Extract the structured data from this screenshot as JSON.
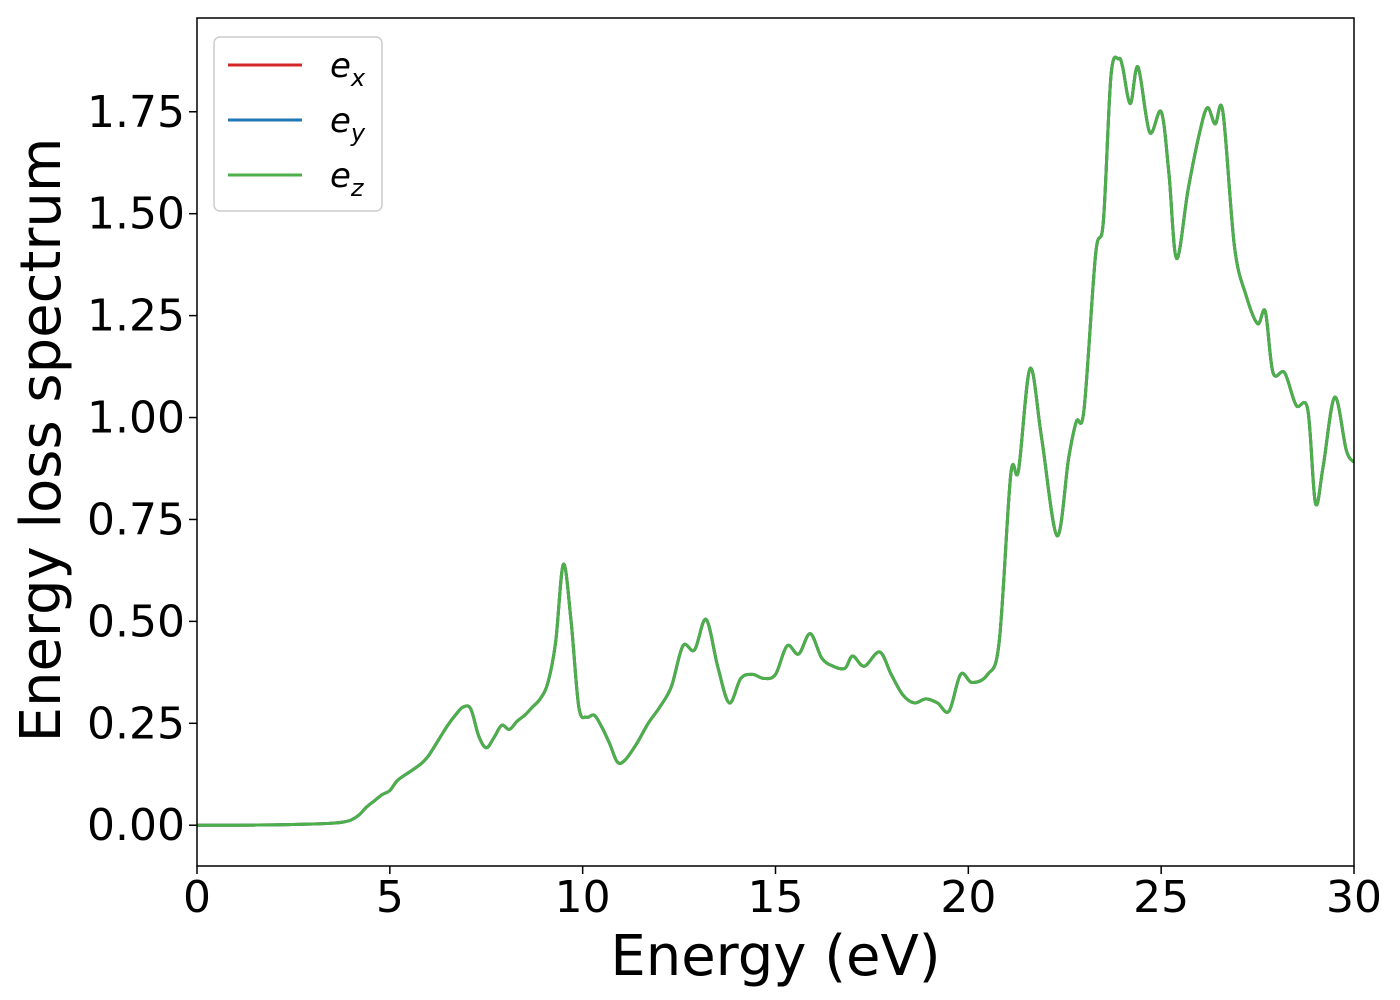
{
  "chart_data": {
    "type": "line",
    "title": "",
    "xlabel": "Energy (eV)",
    "ylabel": "Energy loss spectrum",
    "xlim": [
      0,
      30
    ],
    "ylim": [
      -0.1,
      1.98
    ],
    "xticks": [
      "0",
      "5",
      "10",
      "15",
      "20",
      "25",
      "30"
    ],
    "xtick_values": [
      0,
      5,
      10,
      15,
      20,
      25,
      30
    ],
    "yticks": [
      "0.00",
      "0.25",
      "0.50",
      "0.75",
      "1.00",
      "1.25",
      "1.50",
      "1.75"
    ],
    "ytick_values": [
      0,
      0.25,
      0.5,
      0.75,
      1.0,
      1.25,
      1.5,
      1.75
    ],
    "grid": false,
    "legend_position": "top-left",
    "x": [
      0,
      1,
      2,
      3,
      3.5,
      3.8,
      4.0,
      4.2,
      4.4,
      4.6,
      4.8,
      5.0,
      5.2,
      5.5,
      5.8,
      6.0,
      6.3,
      6.5,
      6.7,
      6.9,
      7.1,
      7.3,
      7.5,
      7.7,
      7.9,
      8.1,
      8.3,
      8.5,
      8.7,
      8.9,
      9.1,
      9.3,
      9.5,
      9.7,
      9.9,
      10.1,
      10.3,
      10.5,
      10.7,
      10.9,
      11.1,
      11.4,
      11.7,
      12.0,
      12.3,
      12.6,
      12.9,
      13.2,
      13.5,
      13.8,
      14.1,
      14.4,
      14.7,
      15.0,
      15.3,
      15.6,
      15.9,
      16.2,
      16.5,
      16.8,
      17.0,
      17.3,
      17.7,
      18.0,
      18.3,
      18.6,
      18.9,
      19.2,
      19.5,
      19.8,
      20.1,
      20.5,
      20.8,
      21.1,
      21.3,
      21.6,
      21.9,
      22.3,
      22.6,
      22.8,
      23.0,
      23.3,
      23.5,
      23.7,
      23.9,
      24.0,
      24.2,
      24.4,
      24.7,
      25.0,
      25.2,
      25.4,
      25.7,
      26.0,
      26.2,
      26.4,
      26.6,
      26.9,
      27.2,
      27.5,
      27.7,
      27.9,
      28.2,
      28.5,
      28.8,
      29.0,
      29.2,
      29.5,
      29.8,
      30.0
    ],
    "series": [
      {
        "name": "e_x",
        "color": "#d62728",
        "values": [
          0,
          0,
          0.001,
          0.003,
          0.005,
          0.008,
          0.013,
          0.025,
          0.045,
          0.06,
          0.075,
          0.085,
          0.11,
          0.13,
          0.15,
          0.17,
          0.215,
          0.245,
          0.27,
          0.29,
          0.285,
          0.22,
          0.19,
          0.215,
          0.245,
          0.235,
          0.255,
          0.27,
          0.29,
          0.31,
          0.35,
          0.45,
          0.64,
          0.5,
          0.29,
          0.265,
          0.27,
          0.24,
          0.2,
          0.155,
          0.16,
          0.2,
          0.25,
          0.29,
          0.34,
          0.44,
          0.43,
          0.505,
          0.39,
          0.3,
          0.36,
          0.37,
          0.36,
          0.37,
          0.44,
          0.42,
          0.47,
          0.41,
          0.39,
          0.385,
          0.415,
          0.39,
          0.425,
          0.37,
          0.32,
          0.3,
          0.31,
          0.3,
          0.28,
          0.37,
          0.35,
          0.37,
          0.45,
          0.86,
          0.87,
          1.12,
          0.95,
          0.71,
          0.9,
          0.99,
          1.02,
          1.4,
          1.48,
          1.84,
          1.88,
          1.86,
          1.77,
          1.86,
          1.7,
          1.75,
          1.6,
          1.39,
          1.56,
          1.7,
          1.76,
          1.72,
          1.75,
          1.42,
          1.3,
          1.23,
          1.26,
          1.11,
          1.11,
          1.03,
          1.02,
          0.79,
          0.88,
          1.05,
          0.92,
          0.89
        ]
      },
      {
        "name": "e_y",
        "color": "#1f77b4",
        "values": [
          0,
          0,
          0.001,
          0.003,
          0.005,
          0.008,
          0.013,
          0.025,
          0.045,
          0.06,
          0.075,
          0.085,
          0.11,
          0.13,
          0.15,
          0.17,
          0.215,
          0.245,
          0.27,
          0.29,
          0.285,
          0.22,
          0.19,
          0.215,
          0.245,
          0.235,
          0.255,
          0.27,
          0.29,
          0.31,
          0.35,
          0.45,
          0.64,
          0.5,
          0.29,
          0.265,
          0.27,
          0.24,
          0.2,
          0.155,
          0.16,
          0.2,
          0.25,
          0.29,
          0.34,
          0.44,
          0.43,
          0.505,
          0.39,
          0.3,
          0.36,
          0.37,
          0.36,
          0.37,
          0.44,
          0.42,
          0.47,
          0.41,
          0.39,
          0.385,
          0.415,
          0.39,
          0.425,
          0.37,
          0.32,
          0.3,
          0.31,
          0.3,
          0.28,
          0.37,
          0.35,
          0.37,
          0.45,
          0.86,
          0.87,
          1.12,
          0.95,
          0.71,
          0.9,
          0.99,
          1.02,
          1.4,
          1.48,
          1.84,
          1.88,
          1.86,
          1.77,
          1.86,
          1.7,
          1.75,
          1.6,
          1.39,
          1.56,
          1.7,
          1.76,
          1.72,
          1.75,
          1.42,
          1.3,
          1.23,
          1.26,
          1.11,
          1.11,
          1.03,
          1.02,
          0.79,
          0.88,
          1.05,
          0.92,
          0.89
        ]
      },
      {
        "name": "e_z",
        "color": "#4daf4a",
        "values": [
          0,
          0,
          0.001,
          0.003,
          0.005,
          0.008,
          0.013,
          0.025,
          0.045,
          0.06,
          0.075,
          0.085,
          0.11,
          0.13,
          0.15,
          0.17,
          0.215,
          0.245,
          0.27,
          0.29,
          0.285,
          0.22,
          0.19,
          0.215,
          0.245,
          0.235,
          0.255,
          0.27,
          0.29,
          0.31,
          0.35,
          0.45,
          0.64,
          0.5,
          0.29,
          0.265,
          0.27,
          0.24,
          0.2,
          0.155,
          0.16,
          0.2,
          0.25,
          0.29,
          0.34,
          0.44,
          0.43,
          0.505,
          0.39,
          0.3,
          0.36,
          0.37,
          0.36,
          0.37,
          0.44,
          0.42,
          0.47,
          0.41,
          0.39,
          0.385,
          0.415,
          0.39,
          0.425,
          0.37,
          0.32,
          0.3,
          0.31,
          0.3,
          0.28,
          0.37,
          0.35,
          0.37,
          0.45,
          0.86,
          0.87,
          1.12,
          0.95,
          0.71,
          0.9,
          0.99,
          1.02,
          1.4,
          1.48,
          1.84,
          1.88,
          1.86,
          1.77,
          1.86,
          1.7,
          1.75,
          1.6,
          1.39,
          1.56,
          1.7,
          1.76,
          1.72,
          1.75,
          1.42,
          1.3,
          1.23,
          1.26,
          1.11,
          1.11,
          1.03,
          1.02,
          0.79,
          0.88,
          1.05,
          0.92,
          0.89
        ]
      }
    ],
    "legend": [
      {
        "base": "e",
        "sub": "x",
        "color": "#d62728"
      },
      {
        "base": "e",
        "sub": "y",
        "color": "#1f77b4"
      },
      {
        "base": "e",
        "sub": "z",
        "color": "#4daf4a"
      }
    ]
  }
}
